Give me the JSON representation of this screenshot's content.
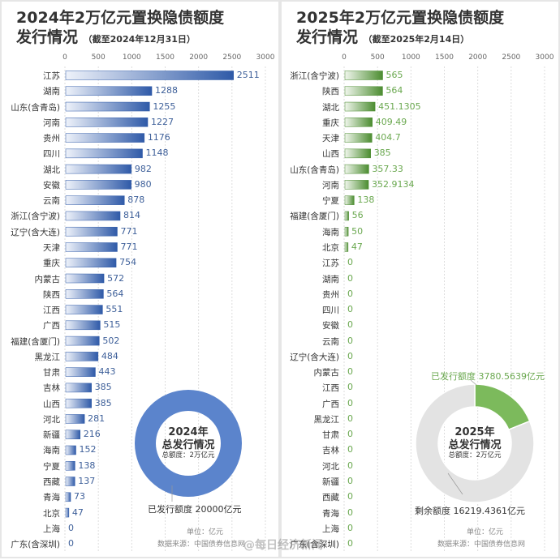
{
  "chart_data": [
    {
      "type": "bar",
      "orientation": "horizontal",
      "title_line1": "2024年2万亿元置换隐债额度",
      "title_line2": "发行情况",
      "subtitle": "（截至2024年12月31日）",
      "xlim": [
        0,
        3000
      ],
      "xticks": [
        0,
        500,
        1000,
        1500,
        2000,
        2500,
        3000
      ],
      "grid": true,
      "color": "#4a74c4",
      "categories": [
        "江苏",
        "湖南",
        "山东(含青岛)",
        "河南",
        "贵州",
        "四川",
        "湖北",
        "安徽",
        "云南",
        "浙江(含宁波)",
        "辽宁(含大连)",
        "天津",
        "重庆",
        "内蒙古",
        "陕西",
        "江西",
        "广西",
        "福建(含厦门)",
        "黑龙江",
        "甘肃",
        "吉林",
        "山西",
        "河北",
        "新疆",
        "海南",
        "宁夏",
        "西藏",
        "青海",
        "北京",
        "上海",
        "广东(含深圳)"
      ],
      "values": [
        "2511",
        "1288",
        "1255",
        "1227",
        "1176",
        "1148",
        "982",
        "980",
        "878",
        "814",
        "771",
        "771",
        "754",
        "572",
        "564",
        "551",
        "515",
        "502",
        "484",
        "443",
        "385",
        "385",
        "281",
        "216",
        "152",
        "138",
        "137",
        "73",
        "47",
        "0",
        "0"
      ],
      "donut": {
        "type": "pie",
        "title": "2024年",
        "title2": "总发行情况",
        "total_label": "总额度：2万亿元",
        "slices": [
          {
            "label": "已发行额度 20000亿元",
            "value": 20000,
            "color": "#5b84cc"
          }
        ]
      },
      "unit": "单位：亿元",
      "source": "数据来源：中国债券信息网"
    },
    {
      "type": "bar",
      "orientation": "horizontal",
      "title_line1": "2025年2万亿元置换隐债额度",
      "title_line2": "发行情况",
      "subtitle": "（截至2025年2月14日）",
      "xlim": [
        0,
        3000
      ],
      "xticks": [
        0,
        500,
        1000,
        1500,
        2000,
        2500,
        3000
      ],
      "grid": true,
      "color": "#6aa84f",
      "categories": [
        "浙江(含宁波)",
        "陕西",
        "湖北",
        "重庆",
        "天津",
        "山西",
        "山东(含青岛)",
        "河南",
        "宁夏",
        "福建(含厦门)",
        "海南",
        "北京",
        "江苏",
        "湖南",
        "贵州",
        "四川",
        "安徽",
        "云南",
        "辽宁(含大连)",
        "内蒙古",
        "江西",
        "广西",
        "黑龙江",
        "甘肃",
        "吉林",
        "河北",
        "新疆",
        "西藏",
        "青海",
        "上海",
        "广东(含深圳)"
      ],
      "values": [
        "565",
        "564",
        "451.1305",
        "409.49",
        "404.7",
        "385",
        "357.33",
        "352.9134",
        "138",
        "56",
        "50",
        "47",
        "0",
        "0",
        "0",
        "0",
        "0",
        "0",
        "0",
        "0",
        "0",
        "0",
        "0",
        "0",
        "0",
        "0",
        "0",
        "0",
        "0",
        "0",
        "0"
      ],
      "donut": {
        "type": "pie",
        "title": "2025年",
        "title2": "总发行情况",
        "total_label": "总额度：2万亿元",
        "slices": [
          {
            "label": "已发行额度 3780.5639亿元",
            "value": 3780.5639,
            "color": "#7cba5c"
          },
          {
            "label": "剩余额度 16219.4361亿元",
            "value": 16219.4361,
            "color": "#e3e3e3"
          }
        ]
      },
      "unit": "单位：亿元",
      "source": "数据来源：中国债券信息网"
    }
  ],
  "watermark": "@每日经济新闻"
}
